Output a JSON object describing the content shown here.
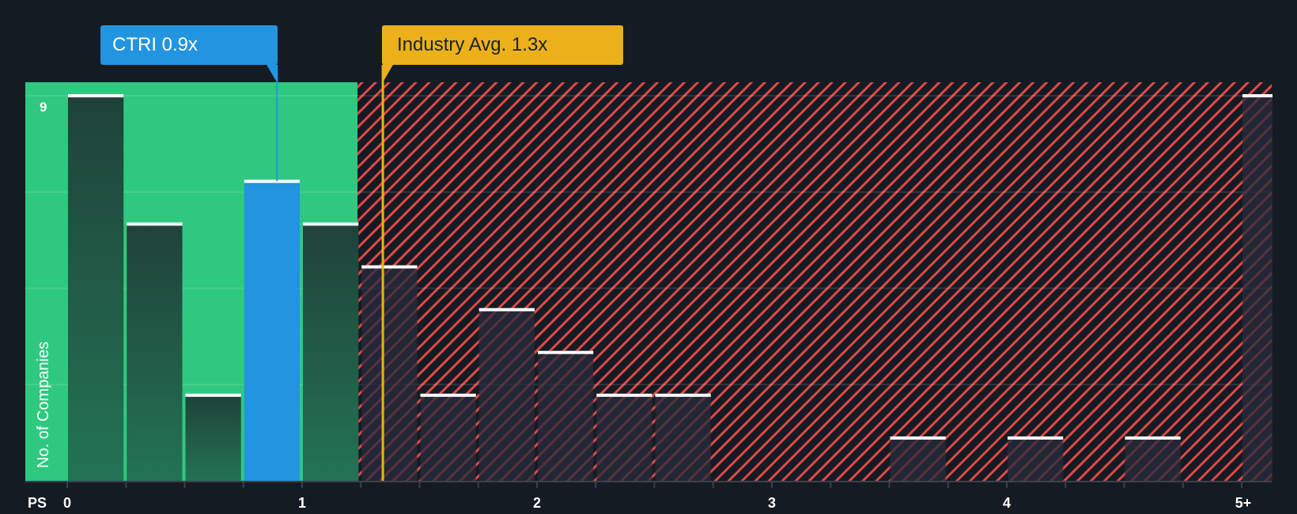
{
  "annotations": {
    "company": {
      "label": "CTRI 0.9x",
      "value": 0.9,
      "color": "#2394df"
    },
    "industry": {
      "label": "Industry Avg. 1.3x",
      "value": 1.3,
      "color": "#ecb11a"
    }
  },
  "axis": {
    "x_title": "PS",
    "y_title": "No. of Companies",
    "y_top_label": "9",
    "x_ticks": [
      {
        "label": "0",
        "value": 0
      },
      {
        "label": "1",
        "value": 1
      },
      {
        "label": "2",
        "value": 2
      },
      {
        "label": "3",
        "value": 3
      },
      {
        "label": "4",
        "value": 4
      },
      {
        "label": "5+",
        "value": 5
      }
    ]
  },
  "colors": {
    "background": "#151b23",
    "fair_zone": "#2ec97f",
    "bar_in_fair_zone": "#214a3f",
    "highlight_bar": "#2394df",
    "overvalued_hatch": "#e04848",
    "bar_top": "#ffffff"
  },
  "chart_data": {
    "type": "bar",
    "title": "",
    "xlabel": "PS",
    "ylabel": "No. of Companies",
    "bin_width": 0.25,
    "xlim": [
      0,
      5.14
    ],
    "ylim": [
      0,
      9.3
    ],
    "fair_zone_end": 1.3,
    "highlight_bin_start": 0.75,
    "bins": [
      {
        "start": 0.0,
        "value": 9
      },
      {
        "start": 0.25,
        "value": 6
      },
      {
        "start": 0.5,
        "value": 2
      },
      {
        "start": 0.75,
        "value": 7
      },
      {
        "start": 1.0,
        "value": 6
      },
      {
        "start": 1.25,
        "value": 5
      },
      {
        "start": 1.5,
        "value": 2
      },
      {
        "start": 1.75,
        "value": 4
      },
      {
        "start": 2.0,
        "value": 3
      },
      {
        "start": 2.25,
        "value": 2
      },
      {
        "start": 2.5,
        "value": 2
      },
      {
        "start": 2.75,
        "value": 0
      },
      {
        "start": 3.0,
        "value": 0
      },
      {
        "start": 3.25,
        "value": 0
      },
      {
        "start": 3.5,
        "value": 1
      },
      {
        "start": 3.75,
        "value": 0
      },
      {
        "start": 4.0,
        "value": 1
      },
      {
        "start": 4.25,
        "value": 0
      },
      {
        "start": 4.5,
        "value": 1
      },
      {
        "start": 4.75,
        "value": 0
      },
      {
        "start": 5.0,
        "value": 9
      }
    ],
    "annotations": [
      {
        "label": "CTRI 0.9x",
        "x": 0.9
      },
      {
        "label": "Industry Avg. 1.3x",
        "x": 1.3
      }
    ]
  }
}
